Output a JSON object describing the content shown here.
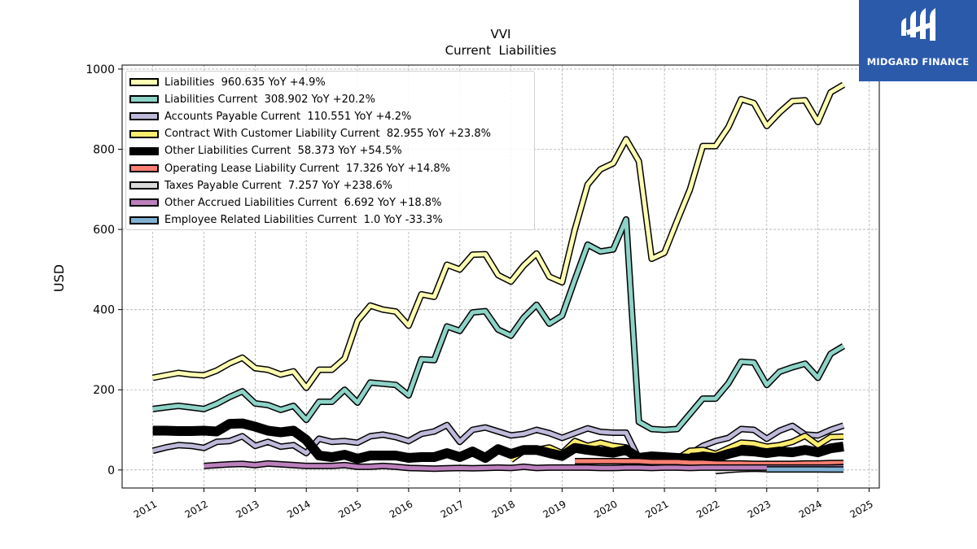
{
  "chart_data": {
    "type": "line",
    "title": "VVI",
    "subtitle": "Current  Liabilities",
    "ylabel": "USD",
    "xlabel": "",
    "xlim": [
      2010.4,
      2025.2
    ],
    "ylim": [
      -45,
      1010
    ],
    "yticks": [
      0,
      200,
      400,
      600,
      800,
      1000
    ],
    "xticks": [
      "2011",
      "2012",
      "2013",
      "2014",
      "2015",
      "2016",
      "2017",
      "2018",
      "2019",
      "2020",
      "2021",
      "2022",
      "2023",
      "2024",
      "2025"
    ],
    "grid": true,
    "legend_position": "upper-left",
    "series": [
      {
        "name": "Liabilities",
        "legend_label": "Liabilities  960.635 YoY +4.9%",
        "color": "#ffffb3",
        "linewidth": 5,
        "x": [
          2011.0,
          2011.25,
          2011.5,
          2011.75,
          2012.0,
          2012.25,
          2012.5,
          2012.75,
          2013.0,
          2013.25,
          2013.5,
          2013.75,
          2014.0,
          2014.25,
          2014.5,
          2014.75,
          2015.0,
          2015.25,
          2015.5,
          2015.75,
          2016.0,
          2016.25,
          2016.5,
          2016.75,
          2017.0,
          2017.25,
          2017.5,
          2017.75,
          2018.0,
          2018.25,
          2018.5,
          2018.75,
          2019.0,
          2019.25,
          2019.5,
          2019.75,
          2020.0,
          2020.25,
          2020.5,
          2020.75,
          2021.0,
          2021.25,
          2021.5,
          2021.75,
          2022.0,
          2022.25,
          2022.5,
          2022.75,
          2023.0,
          2023.25,
          2023.5,
          2023.75,
          2024.0,
          2024.25,
          2024.5
        ],
        "values": [
          230,
          236,
          242,
          238,
          236,
          248,
          266,
          280,
          254,
          250,
          238,
          246,
          205,
          250,
          250,
          278,
          372,
          410,
          400,
          395,
          360,
          438,
          432,
          512,
          500,
          537,
          538,
          486,
          470,
          510,
          540,
          482,
          468,
          600,
          712,
          750,
          765,
          825,
          770,
          527,
          542,
          622,
          700,
          808,
          808,
          855,
          925,
          915,
          858,
          892,
          920,
          922,
          868,
          942,
          960.635
        ]
      },
      {
        "name": "Liabilities Current",
        "legend_label": "Liabilities Current  308.902 YoY +20.2%",
        "color": "#8dd3c7",
        "linewidth": 5,
        "x": [
          2011.0,
          2011.25,
          2011.5,
          2011.75,
          2012.0,
          2012.25,
          2012.5,
          2012.75,
          2013.0,
          2013.25,
          2013.5,
          2013.75,
          2014.0,
          2014.25,
          2014.5,
          2014.75,
          2015.0,
          2015.25,
          2015.5,
          2015.75,
          2016.0,
          2016.25,
          2016.5,
          2016.75,
          2017.0,
          2017.25,
          2017.5,
          2017.75,
          2018.0,
          2018.25,
          2018.5,
          2018.75,
          2019.0,
          2019.25,
          2019.5,
          2019.75,
          2020.0,
          2020.25,
          2020.5,
          2020.75,
          2021.0,
          2021.25,
          2021.5,
          2021.75,
          2022.0,
          2022.25,
          2022.5,
          2022.75,
          2023.0,
          2023.25,
          2023.5,
          2023.75,
          2024.0,
          2024.25,
          2024.5
        ],
        "values": [
          152,
          156,
          160,
          156,
          152,
          165,
          182,
          196,
          166,
          162,
          150,
          160,
          125,
          170,
          170,
          200,
          168,
          218,
          215,
          212,
          186,
          276,
          274,
          358,
          347,
          393,
          396,
          350,
          335,
          380,
          412,
          365,
          385,
          475,
          562,
          545,
          550,
          625,
          120,
          102,
          100,
          102,
          140,
          178,
          178,
          216,
          270,
          268,
          212,
          245,
          256,
          265,
          230,
          290,
          308.902
        ]
      },
      {
        "name": "Accounts Payable Current",
        "legend_label": "Accounts Payable Current  110.551 YoY +4.2%",
        "color": "#bebada",
        "linewidth": 5,
        "x": [
          2011.0,
          2011.25,
          2011.5,
          2011.75,
          2012.0,
          2012.25,
          2012.5,
          2012.75,
          2013.0,
          2013.25,
          2013.5,
          2013.75,
          2014.0,
          2014.25,
          2014.5,
          2014.75,
          2015.0,
          2015.25,
          2015.5,
          2015.75,
          2016.0,
          2016.25,
          2016.5,
          2016.75,
          2017.0,
          2017.25,
          2017.5,
          2017.75,
          2018.0,
          2018.25,
          2018.5,
          2018.75,
          2019.0,
          2019.25,
          2019.5,
          2019.75,
          2020.0,
          2020.25,
          2020.5,
          2020.75,
          2021.0,
          2021.25,
          2021.5,
          2021.75,
          2022.0,
          2022.25,
          2022.5,
          2022.75,
          2023.0,
          2023.25,
          2023.5,
          2023.75,
          2024.0,
          2024.25,
          2024.5
        ],
        "values": [
          48,
          56,
          62,
          60,
          55,
          70,
          72,
          84,
          60,
          70,
          58,
          62,
          42,
          78,
          70,
          72,
          68,
          84,
          88,
          82,
          72,
          90,
          96,
          112,
          70,
          100,
          106,
          96,
          86,
          90,
          100,
          92,
          80,
          92,
          104,
          95,
          93,
          93,
          28,
          24,
          26,
          26,
          40,
          60,
          72,
          80,
          102,
          100,
          78,
          98,
          110,
          88,
          86,
          100,
          110.551
        ]
      },
      {
        "name": "Contract With Customer Liability Current",
        "legend_label": "Contract With Customer Liability Current  82.955 YoY +23.8%",
        "color": "#ffed6f",
        "linewidth": 5,
        "x": [
          2018.0,
          2018.25,
          2018.5,
          2018.75,
          2019.0,
          2019.25,
          2019.5,
          2019.75,
          2020.0,
          2020.25,
          2020.5,
          2020.75,
          2021.0,
          2021.25,
          2021.5,
          2021.75,
          2022.0,
          2022.25,
          2022.5,
          2022.75,
          2023.0,
          2023.25,
          2023.5,
          2023.75,
          2024.0,
          2024.25,
          2024.5
        ],
        "values": [
          25,
          48,
          50,
          56,
          42,
          72,
          60,
          68,
          60,
          56,
          30,
          28,
          30,
          28,
          48,
          50,
          40,
          54,
          68,
          66,
          58,
          62,
          70,
          85,
          62,
          82,
          82.955
        ]
      },
      {
        "name": "Other Liabilities Current",
        "legend_label": "Other Liabilities Current  58.373 YoY +54.5%",
        "color": "#000000",
        "linewidth": 9,
        "x": [
          2011.0,
          2011.25,
          2011.5,
          2011.75,
          2012.0,
          2012.25,
          2012.5,
          2012.75,
          2013.0,
          2013.25,
          2013.5,
          2013.75,
          2014.0,
          2014.25,
          2014.5,
          2014.75,
          2015.0,
          2015.25,
          2015.5,
          2015.75,
          2016.0,
          2016.25,
          2016.5,
          2016.75,
          2017.0,
          2017.25,
          2017.5,
          2017.75,
          2018.0,
          2018.25,
          2018.5,
          2018.75,
          2019.0,
          2019.25,
          2019.5,
          2019.75,
          2020.0,
          2020.25,
          2020.5,
          2020.75,
          2021.0,
          2021.25,
          2021.5,
          2021.75,
          2022.0,
          2022.25,
          2022.5,
          2022.75,
          2023.0,
          2023.25,
          2023.5,
          2023.75,
          2024.0,
          2024.25,
          2024.5
        ],
        "values": [
          98,
          98,
          97,
          97,
          98,
          96,
          115,
          116,
          108,
          98,
          94,
          98,
          75,
          36,
          32,
          38,
          28,
          36,
          36,
          36,
          30,
          32,
          32,
          42,
          32,
          46,
          30,
          52,
          40,
          50,
          50,
          42,
          35,
          55,
          50,
          46,
          43,
          50,
          30,
          34,
          32,
          30,
          28,
          34,
          30,
          40,
          48,
          46,
          42,
          46,
          44,
          50,
          44,
          54,
          58.373
        ]
      },
      {
        "name": "Operating Lease Liability Current",
        "legend_label": "Operating Lease Liability Current  17.326 YoY +14.8%",
        "color": "#fb8072",
        "linewidth": 5,
        "x": [
          2019.25,
          2019.5,
          2019.75,
          2020.0,
          2020.25,
          2020.5,
          2020.75,
          2021.0,
          2021.25,
          2021.5,
          2021.75,
          2022.0,
          2022.25,
          2022.5,
          2022.75,
          2023.0,
          2023.25,
          2023.5,
          2023.75,
          2024.0,
          2024.25,
          2024.5
        ],
        "values": [
          22,
          22,
          22,
          22,
          22,
          22,
          20,
          20,
          20,
          18,
          18,
          16,
          16,
          16,
          15,
          15,
          15,
          15,
          16,
          16,
          17,
          17.326
        ]
      },
      {
        "name": "Taxes Payable Current",
        "legend_label": "Taxes Payable Current  7.257 YoY +238.6%",
        "color": "#d9d9d9",
        "linewidth": 5,
        "x": [
          2022.0,
          2022.25,
          2022.5,
          2022.75,
          2023.0,
          2023.25,
          2023.5,
          2023.75,
          2024.0,
          2024.25,
          2024.5
        ],
        "values": [
          -3,
          0,
          2,
          3,
          2,
          2,
          3,
          4,
          5,
          6,
          7.257
        ]
      },
      {
        "name": "Other Accrued Liabilities Current",
        "legend_label": "Other Accrued Liabilities Current  6.692 YoY +18.8%",
        "color": "#bc80bd",
        "linewidth": 5,
        "x": [
          2012.0,
          2012.25,
          2012.5,
          2012.75,
          2013.0,
          2013.25,
          2013.5,
          2013.75,
          2014.0,
          2014.25,
          2014.5,
          2014.75,
          2015.0,
          2015.25,
          2015.5,
          2015.75,
          2016.0,
          2016.25,
          2016.5,
          2016.75,
          2017.0,
          2017.25,
          2017.5,
          2017.75,
          2018.0,
          2018.25,
          2018.5,
          2018.75,
          2019.0,
          2019.25,
          2019.5,
          2019.75,
          2020.0,
          2020.25,
          2020.5,
          2020.75,
          2021.0,
          2021.25,
          2021.5,
          2021.75,
          2022.0,
          2022.25,
          2022.5,
          2022.75,
          2023.0,
          2023.25,
          2023.5,
          2023.75,
          2024.0,
          2024.25,
          2024.5
        ],
        "values": [
          10,
          12,
          14,
          15,
          12,
          16,
          14,
          12,
          10,
          10,
          10,
          12,
          8,
          8,
          10,
          8,
          5,
          4,
          3,
          4,
          5,
          4,
          5,
          6,
          5,
          8,
          5,
          6,
          6,
          6,
          6,
          5,
          5,
          6,
          6,
          5,
          6,
          6,
          5,
          6,
          6,
          6,
          6,
          6,
          6,
          6,
          6,
          6,
          6,
          6,
          6.692
        ]
      },
      {
        "name": "Employee Related Liabilities Current",
        "legend_label": "Employee Related Liabilities Current  1.0 YoY -33.3%",
        "color": "#80b1d3",
        "linewidth": 5,
        "x": [
          2023.0,
          2023.25,
          2023.5,
          2023.75,
          2024.0,
          2024.25,
          2024.5
        ],
        "values": [
          1.5,
          1.5,
          1.5,
          1.5,
          1.5,
          1.0,
          1.0
        ]
      }
    ]
  },
  "branding": {
    "logo_text": "MIDGARD FINANCE",
    "logo_color": "#2b5aab"
  }
}
